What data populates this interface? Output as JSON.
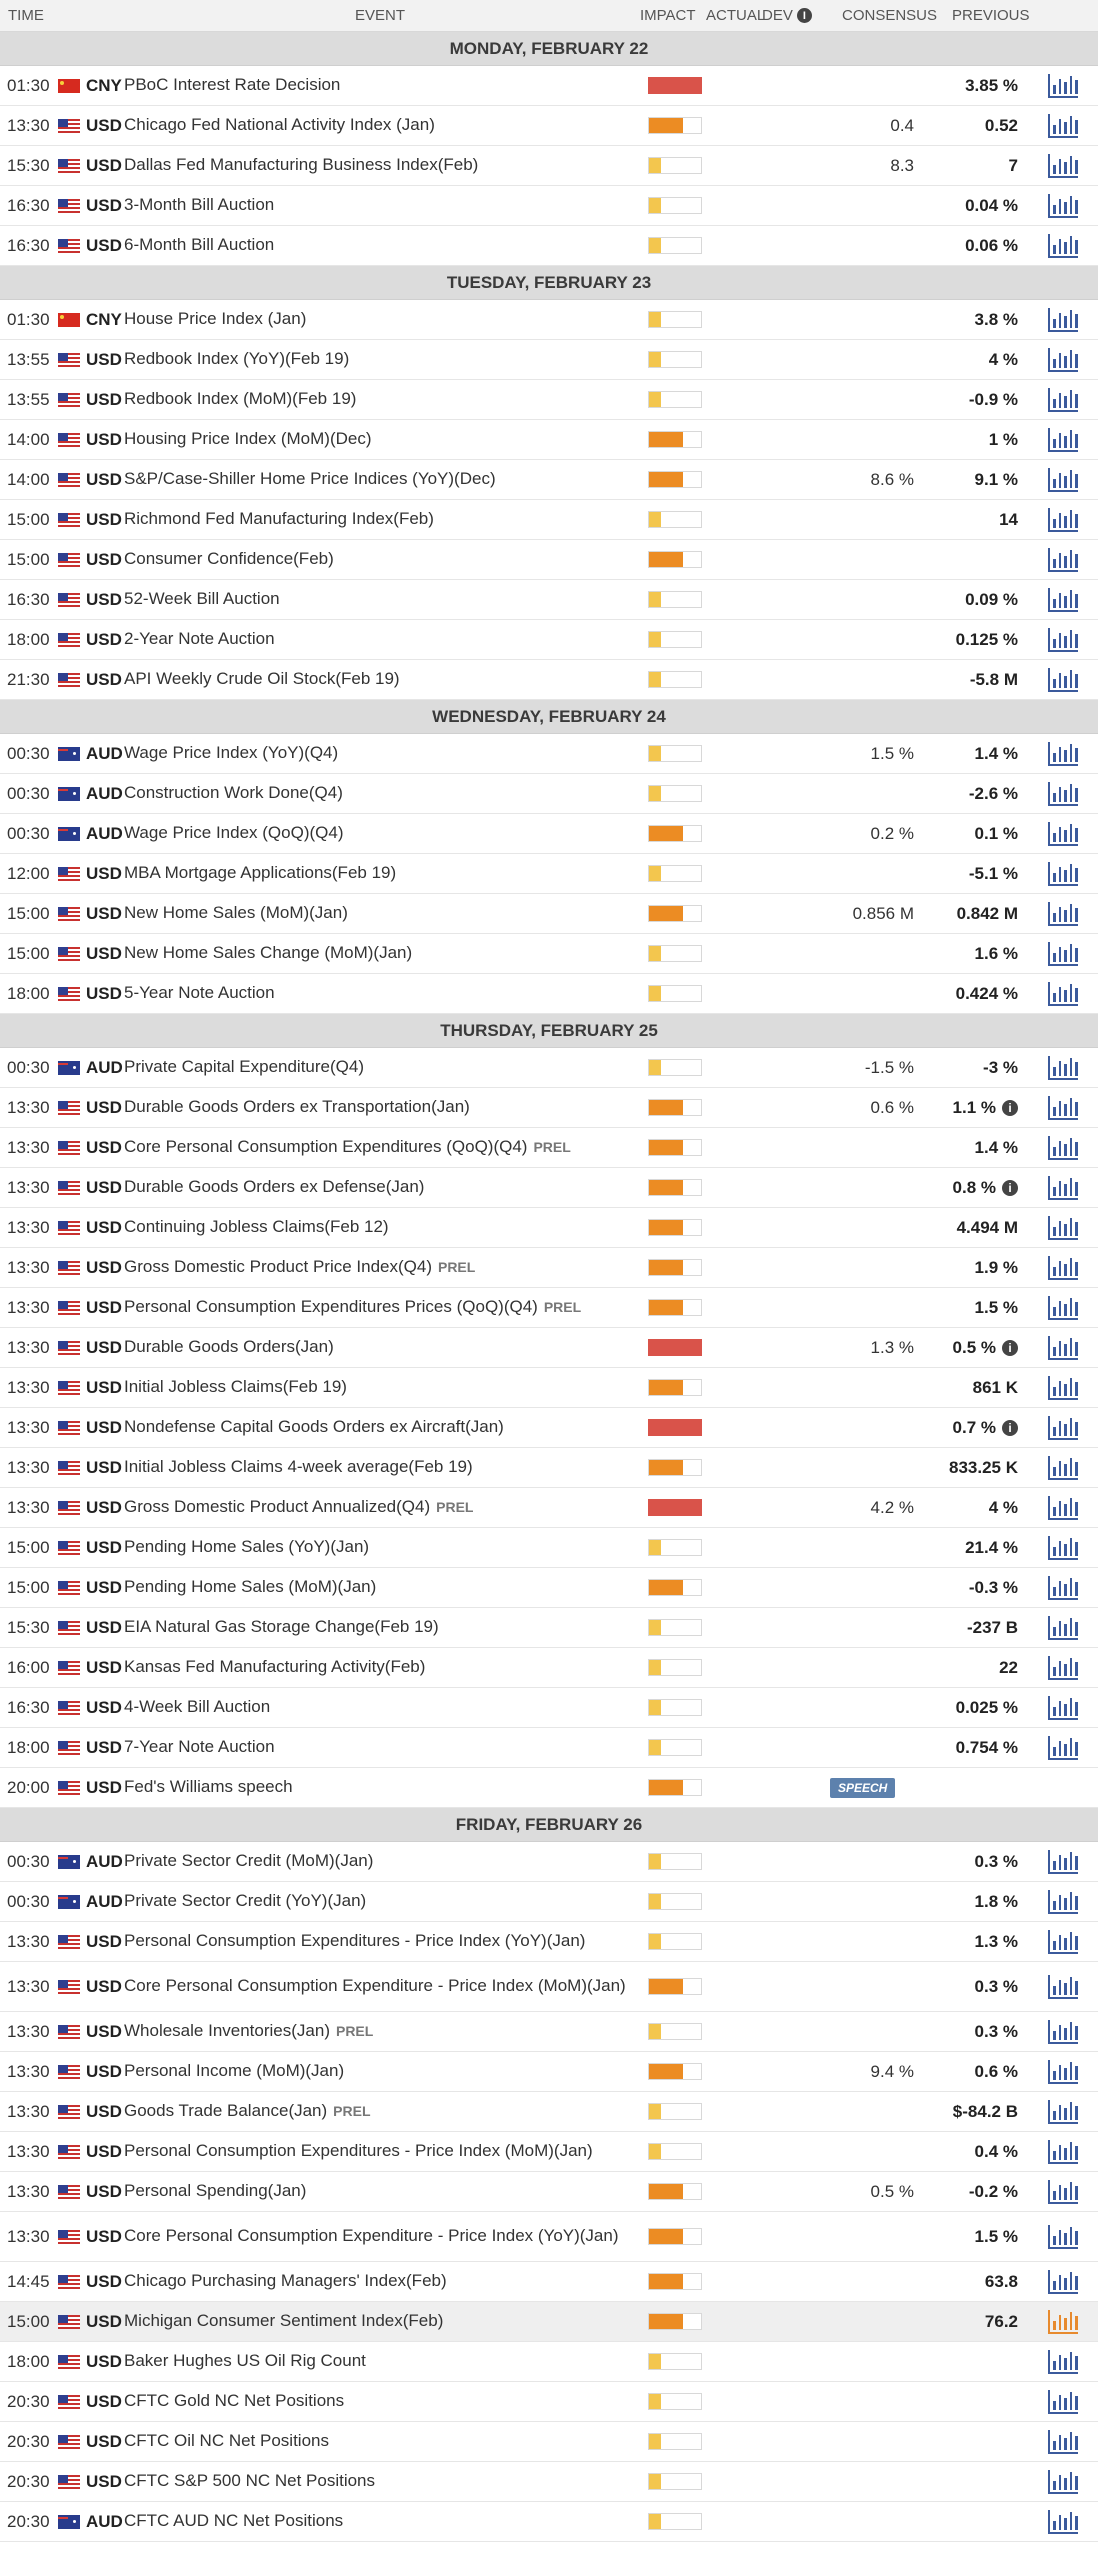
{
  "header": {
    "time": "TIME",
    "event": "EVENT",
    "impact": "IMPACT",
    "actual": "ACTUAL",
    "dev": "DEV",
    "consensus": "CONSENSUS",
    "previous": "PREVIOUS"
  },
  "icons": {
    "info": "info-icon",
    "chart": "bar-chart-icon",
    "flags": {
      "USD": "us-flag-icon",
      "CNY": "china-flag-icon",
      "AUD": "australia-flag-icon"
    }
  },
  "colors": {
    "impact_low": "#f3c64e",
    "impact_medium": "#ec8c23",
    "impact_high": "#d9534a",
    "chart_icon": "#3b5a9c",
    "chart_icon_active": "#e78a2e",
    "speech_badge": "#5d81ad"
  },
  "days": [
    {
      "label": "MONDAY, FEBRUARY 22",
      "events": [
        {
          "time": "01:30",
          "currency": "CNY",
          "name": "PBoC Interest Rate Decision",
          "impact": "high",
          "consensus": "",
          "previous": "3.85 %"
        },
        {
          "time": "13:30",
          "currency": "USD",
          "name": "Chicago Fed National Activity Index (Jan)",
          "impact": "medium",
          "consensus": "0.4",
          "previous": "0.52"
        },
        {
          "time": "15:30",
          "currency": "USD",
          "name": "Dallas Fed Manufacturing Business Index(Feb)",
          "impact": "low",
          "consensus": "8.3",
          "previous": "7"
        },
        {
          "time": "16:30",
          "currency": "USD",
          "name": "3-Month Bill Auction",
          "impact": "low",
          "consensus": "",
          "previous": "0.04 %"
        },
        {
          "time": "16:30",
          "currency": "USD",
          "name": "6-Month Bill Auction",
          "impact": "low",
          "consensus": "",
          "previous": "0.06 %"
        }
      ]
    },
    {
      "label": "TUESDAY, FEBRUARY 23",
      "events": [
        {
          "time": "01:30",
          "currency": "CNY",
          "name": "House Price Index (Jan)",
          "impact": "low",
          "consensus": "",
          "previous": "3.8 %"
        },
        {
          "time": "13:55",
          "currency": "USD",
          "name": "Redbook Index (YoY)(Feb 19)",
          "impact": "low",
          "consensus": "",
          "previous": "4 %"
        },
        {
          "time": "13:55",
          "currency": "USD",
          "name": "Redbook Index (MoM)(Feb 19)",
          "impact": "low",
          "consensus": "",
          "previous": "-0.9 %"
        },
        {
          "time": "14:00",
          "currency": "USD",
          "name": "Housing Price Index (MoM)(Dec)",
          "impact": "medium",
          "consensus": "",
          "previous": "1 %"
        },
        {
          "time": "14:00",
          "currency": "USD",
          "name": "S&P/Case-Shiller Home Price Indices (YoY)(Dec)",
          "impact": "medium",
          "consensus": "8.6 %",
          "previous": "9.1 %"
        },
        {
          "time": "15:00",
          "currency": "USD",
          "name": "Richmond Fed Manufacturing Index(Feb)",
          "impact": "low",
          "consensus": "",
          "previous": "14"
        },
        {
          "time": "15:00",
          "currency": "USD",
          "name": "Consumer Confidence(Feb)",
          "impact": "medium",
          "consensus": "",
          "previous": ""
        },
        {
          "time": "16:30",
          "currency": "USD",
          "name": "52-Week Bill Auction",
          "impact": "low",
          "consensus": "",
          "previous": "0.09 %"
        },
        {
          "time": "18:00",
          "currency": "USD",
          "name": "2-Year Note Auction",
          "impact": "low",
          "consensus": "",
          "previous": "0.125 %"
        },
        {
          "time": "21:30",
          "currency": "USD",
          "name": "API Weekly Crude Oil Stock(Feb 19)",
          "impact": "low",
          "consensus": "",
          "previous": "-5.8 M"
        }
      ]
    },
    {
      "label": "WEDNESDAY, FEBRUARY 24",
      "events": [
        {
          "time": "00:30",
          "currency": "AUD",
          "name": "Wage Price Index (YoY)(Q4)",
          "impact": "low",
          "consensus": "1.5 %",
          "previous": "1.4 %"
        },
        {
          "time": "00:30",
          "currency": "AUD",
          "name": "Construction Work Done(Q4)",
          "impact": "low",
          "consensus": "",
          "previous": "-2.6 %"
        },
        {
          "time": "00:30",
          "currency": "AUD",
          "name": "Wage Price Index (QoQ)(Q4)",
          "impact": "medium",
          "consensus": "0.2 %",
          "previous": "0.1 %"
        },
        {
          "time": "12:00",
          "currency": "USD",
          "name": "MBA Mortgage Applications(Feb 19)",
          "impact": "low",
          "consensus": "",
          "previous": "-5.1 %"
        },
        {
          "time": "15:00",
          "currency": "USD",
          "name": "New Home Sales (MoM)(Jan)",
          "impact": "medium",
          "consensus": "0.856 M",
          "previous": "0.842 M"
        },
        {
          "time": "15:00",
          "currency": "USD",
          "name": "New Home Sales Change (MoM)(Jan)",
          "impact": "low",
          "consensus": "",
          "previous": "1.6 %"
        },
        {
          "time": "18:00",
          "currency": "USD",
          "name": "5-Year Note Auction",
          "impact": "low",
          "consensus": "",
          "previous": "0.424 %"
        }
      ]
    },
    {
      "label": "THURSDAY, FEBRUARY 25",
      "events": [
        {
          "time": "00:30",
          "currency": "AUD",
          "name": "Private Capital Expenditure(Q4)",
          "impact": "low",
          "consensus": "-1.5 %",
          "previous": "-3 %"
        },
        {
          "time": "13:30",
          "currency": "USD",
          "name": "Durable Goods Orders ex Transportation(Jan)",
          "impact": "medium",
          "consensus": "0.6 %",
          "previous": "1.1 %",
          "revised": true
        },
        {
          "time": "13:30",
          "currency": "USD",
          "name": "Core Personal Consumption Expenditures (QoQ)(Q4)",
          "prel": "PREL",
          "impact": "medium",
          "consensus": "",
          "previous": "1.4 %"
        },
        {
          "time": "13:30",
          "currency": "USD",
          "name": "Durable Goods Orders ex Defense(Jan)",
          "impact": "medium",
          "consensus": "",
          "previous": "0.8 %",
          "revised": true
        },
        {
          "time": "13:30",
          "currency": "USD",
          "name": "Continuing Jobless Claims(Feb 12)",
          "impact": "medium",
          "consensus": "",
          "previous": "4.494 M"
        },
        {
          "time": "13:30",
          "currency": "USD",
          "name": "Gross Domestic Product Price Index(Q4)",
          "prel": "PREL",
          "impact": "medium",
          "consensus": "",
          "previous": "1.9 %"
        },
        {
          "time": "13:30",
          "currency": "USD",
          "name": "Personal Consumption Expenditures Prices (QoQ)(Q4)",
          "prel": "PREL",
          "impact": "medium",
          "consensus": "",
          "previous": "1.5 %"
        },
        {
          "time": "13:30",
          "currency": "USD",
          "name": "Durable Goods Orders(Jan)",
          "impact": "high",
          "consensus": "1.3 %",
          "previous": "0.5 %",
          "revised": true
        },
        {
          "time": "13:30",
          "currency": "USD",
          "name": "Initial Jobless Claims(Feb 19)",
          "impact": "medium",
          "consensus": "",
          "previous": "861 K"
        },
        {
          "time": "13:30",
          "currency": "USD",
          "name": "Nondefense Capital Goods Orders ex Aircraft(Jan)",
          "impact": "high",
          "consensus": "",
          "previous": "0.7 %",
          "revised": true
        },
        {
          "time": "13:30",
          "currency": "USD",
          "name": "Initial Jobless Claims 4-week average(Feb 19)",
          "impact": "medium",
          "consensus": "",
          "previous": "833.25 K"
        },
        {
          "time": "13:30",
          "currency": "USD",
          "name": "Gross Domestic Product Annualized(Q4)",
          "prel": "PREL",
          "impact": "high",
          "consensus": "4.2 %",
          "previous": "4 %"
        },
        {
          "time": "15:00",
          "currency": "USD",
          "name": "Pending Home Sales (YoY)(Jan)",
          "impact": "low",
          "consensus": "",
          "previous": "21.4 %"
        },
        {
          "time": "15:00",
          "currency": "USD",
          "name": "Pending Home Sales (MoM)(Jan)",
          "impact": "medium",
          "consensus": "",
          "previous": "-0.3 %"
        },
        {
          "time": "15:30",
          "currency": "USD",
          "name": "EIA Natural Gas Storage Change(Feb 19)",
          "impact": "low",
          "consensus": "",
          "previous": "-237 B"
        },
        {
          "time": "16:00",
          "currency": "USD",
          "name": "Kansas Fed Manufacturing Activity(Feb)",
          "impact": "low",
          "consensus": "",
          "previous": "22"
        },
        {
          "time": "16:30",
          "currency": "USD",
          "name": "4-Week Bill Auction",
          "impact": "low",
          "consensus": "",
          "previous": "0.025 %"
        },
        {
          "time": "18:00",
          "currency": "USD",
          "name": "7-Year Note Auction",
          "impact": "low",
          "consensus": "",
          "previous": "0.754 %"
        },
        {
          "time": "20:00",
          "currency": "USD",
          "name": "Fed's Williams speech",
          "impact": "medium",
          "consensus": "",
          "previous": "",
          "badge": "SPEECH",
          "no_chart": true
        }
      ]
    },
    {
      "label": "FRIDAY, FEBRUARY 26",
      "events": [
        {
          "time": "00:30",
          "currency": "AUD",
          "name": "Private Sector Credit (MoM)(Jan)",
          "impact": "low",
          "consensus": "",
          "previous": "0.3 %"
        },
        {
          "time": "00:30",
          "currency": "AUD",
          "name": "Private Sector Credit (YoY)(Jan)",
          "impact": "low",
          "consensus": "",
          "previous": "1.8 %"
        },
        {
          "time": "13:30",
          "currency": "USD",
          "name": "Personal Consumption Expenditures - Price Index (YoY)(Jan)",
          "impact": "low",
          "consensus": "",
          "previous": "1.3 %"
        },
        {
          "time": "13:30",
          "currency": "USD",
          "name": "Core Personal Consumption Expenditure - Price Index (MoM)(Jan)",
          "impact": "medium",
          "consensus": "",
          "previous": "0.3 %",
          "tall": true
        },
        {
          "time": "13:30",
          "currency": "USD",
          "name": "Wholesale Inventories(Jan)",
          "prel": "PREL",
          "impact": "low",
          "consensus": "",
          "previous": "0.3 %"
        },
        {
          "time": "13:30",
          "currency": "USD",
          "name": "Personal Income (MoM)(Jan)",
          "impact": "medium",
          "consensus": "9.4 %",
          "previous": "0.6 %"
        },
        {
          "time": "13:30",
          "currency": "USD",
          "name": "Goods Trade Balance(Jan)",
          "prel": "PREL",
          "impact": "low",
          "consensus": "",
          "previous": "$-84.2 B"
        },
        {
          "time": "13:30",
          "currency": "USD",
          "name": "Personal Consumption Expenditures - Price Index (MoM)(Jan)",
          "impact": "low",
          "consensus": "",
          "previous": "0.4 %"
        },
        {
          "time": "13:30",
          "currency": "USD",
          "name": "Personal Spending(Jan)",
          "impact": "medium",
          "consensus": "0.5 %",
          "previous": "-0.2 %"
        },
        {
          "time": "13:30",
          "currency": "USD",
          "name": "Core Personal Consumption Expenditure - Price Index (YoY)(Jan)",
          "impact": "medium",
          "consensus": "",
          "previous": "1.5 %",
          "tall": true
        },
        {
          "time": "14:45",
          "currency": "USD",
          "name": "Chicago Purchasing Managers' Index(Feb)",
          "impact": "medium",
          "consensus": "",
          "previous": "63.8"
        },
        {
          "time": "15:00",
          "currency": "USD",
          "name": "Michigan Consumer Sentiment Index(Feb)",
          "impact": "medium",
          "consensus": "",
          "previous": "76.2",
          "highlight": true
        },
        {
          "time": "18:00",
          "currency": "USD",
          "name": "Baker Hughes US Oil Rig Count",
          "impact": "low",
          "consensus": "",
          "previous": ""
        },
        {
          "time": "20:30",
          "currency": "USD",
          "name": "CFTC Gold NC Net Positions",
          "impact": "low",
          "consensus": "",
          "previous": ""
        },
        {
          "time": "20:30",
          "currency": "USD",
          "name": "CFTC Oil NC Net Positions",
          "impact": "low",
          "consensus": "",
          "previous": ""
        },
        {
          "time": "20:30",
          "currency": "USD",
          "name": "CFTC S&P 500 NC Net Positions",
          "impact": "low",
          "consensus": "",
          "previous": ""
        },
        {
          "time": "20:30",
          "currency": "AUD",
          "name": "CFTC AUD NC Net Positions",
          "impact": "low",
          "consensus": "",
          "previous": ""
        }
      ]
    }
  ]
}
